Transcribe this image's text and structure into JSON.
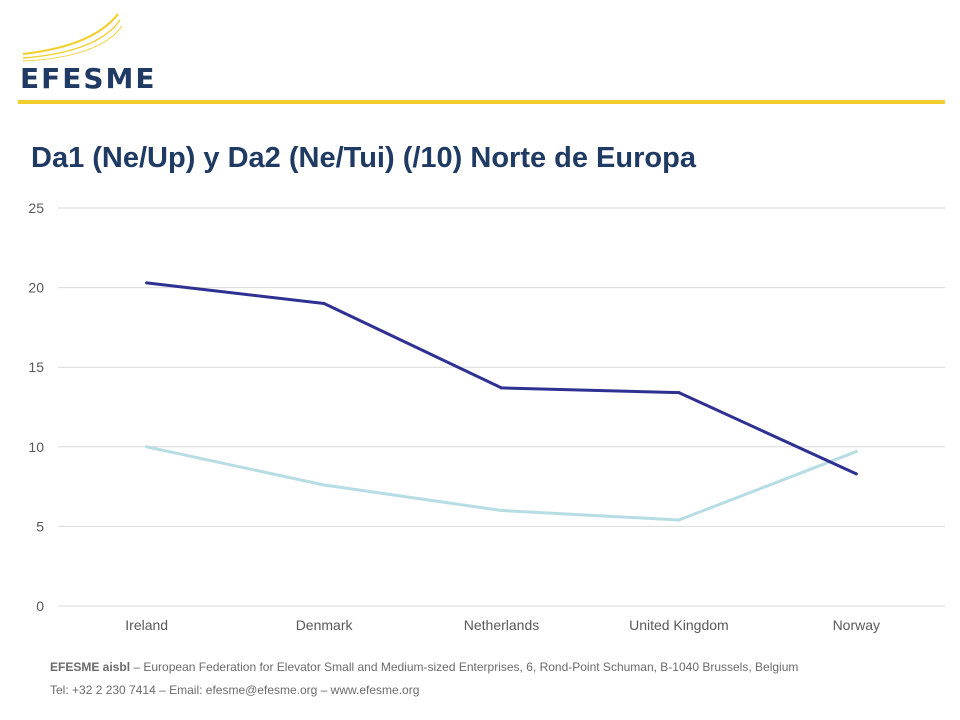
{
  "logo": {
    "text": "EFESME",
    "accent_color": "#f3cf2e",
    "text_color": "#1f3a63"
  },
  "title": "Da1 (Ne/Up) y Da2 (Ne/Tui) (/10) Norte de Europa",
  "chart_data": {
    "type": "line",
    "title": "Da1 (Ne/Up) y Da2 (Ne/Tui) (/10) Norte de Europa",
    "categories": [
      "Ireland",
      "Denmark",
      "Netherlands",
      "United Kingdom",
      "Norway"
    ],
    "series": [
      {
        "color": "#2e3192",
        "values": [
          20.3,
          19.0,
          13.7,
          13.4,
          8.3
        ]
      },
      {
        "color": "#b7dde4",
        "values": [
          10.0,
          7.6,
          6.0,
          5.4,
          9.7
        ]
      }
    ],
    "xlabel": "",
    "ylabel": "",
    "ylim": [
      0,
      25
    ],
    "yticks": [
      0,
      5,
      10,
      15,
      20,
      25
    ],
    "grid": true,
    "legend": "none"
  },
  "footer": {
    "org": "EFESME aisbl",
    "description": " – European Federation for Elevator Small and Medium-sized Enterprises, 6, Rond-Point Schuman, B-1040 Brussels, Belgium",
    "contact": "Tel: +32 2 230 7414 – Email: efesme@efesme.org – www.efesme.org"
  }
}
